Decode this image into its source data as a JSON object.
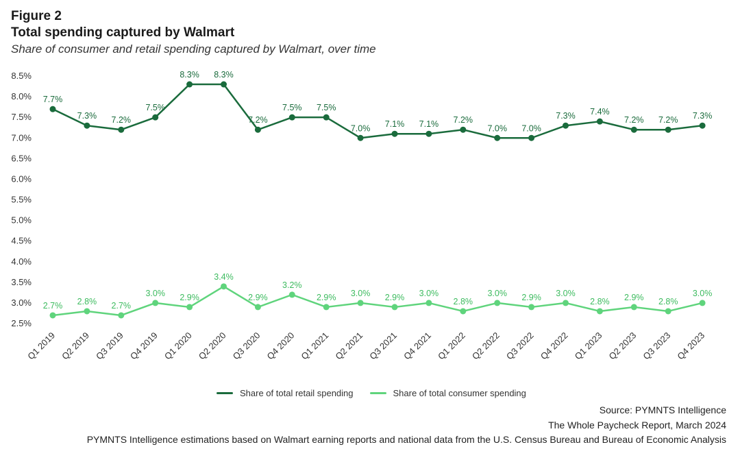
{
  "header": {
    "figure_label": "Figure 2",
    "title": "Total spending captured by Walmart",
    "subtitle": "Share of consumer and retail spending captured by Walmart, over time"
  },
  "legend": {
    "items": [
      {
        "label": "Share of total retail spending",
        "color": "#1a6b3c"
      },
      {
        "label": "Share of total consumer spending",
        "color": "#5fd47c"
      }
    ]
  },
  "footer": {
    "source": "Source: PYMNTS Intelligence",
    "report": "The Whole Paycheck Report, March 2024",
    "note": "PYMNTS Intelligence estimations based on Walmart earning reports and national data from the U.S. Census Bureau and Bureau of Economic Analysis"
  },
  "chart_data": {
    "type": "line",
    "categories": [
      "Q1 2019",
      "Q2 2019",
      "Q3 2019",
      "Q4 2019",
      "Q1 2020",
      "Q2 2020",
      "Q3 2020",
      "Q4 2020",
      "Q1 2021",
      "Q2 2021",
      "Q3 2021",
      "Q4 2021",
      "Q1 2022",
      "Q2 2022",
      "Q3 2022",
      "Q4 2022",
      "Q1 2023",
      "Q2 2023",
      "Q3 2023",
      "Q4 2023"
    ],
    "y_ticks": [
      "2.5%",
      "3.0%",
      "3.5%",
      "4.0%",
      "4.5%",
      "5.0%",
      "5.5%",
      "6.0%",
      "6.5%",
      "7.0%",
      "7.5%",
      "8.0%",
      "8.5%"
    ],
    "ylim": [
      2.5,
      8.5
    ],
    "grid": false,
    "legend_position": "bottom",
    "series": [
      {
        "name": "Share of total retail spending",
        "color": "#1a6b3c",
        "values": [
          7.7,
          7.3,
          7.2,
          7.5,
          8.3,
          8.3,
          7.2,
          7.5,
          7.5,
          7.0,
          7.1,
          7.1,
          7.2,
          7.0,
          7.0,
          7.3,
          7.4,
          7.2,
          7.2,
          7.3
        ],
        "labels": [
          "7.7%",
          "7.3%",
          "7.2%",
          "7.5%",
          "8.3%",
          "8.3%",
          "7.2%",
          "7.5%",
          "7.5%",
          "7.0%",
          "7.1%",
          "7.1%",
          "7.2%",
          "7.0%",
          "7.0%",
          "7.3%",
          "7.4%",
          "7.2%",
          "7.2%",
          "7.3%"
        ]
      },
      {
        "name": "Share of total consumer spending",
        "color": "#5fd47c",
        "label_color": "#3dbb5f",
        "values": [
          2.7,
          2.8,
          2.7,
          3.0,
          2.9,
          3.4,
          2.9,
          3.2,
          2.9,
          3.0,
          2.9,
          3.0,
          2.8,
          3.0,
          2.9,
          3.0,
          2.8,
          2.9,
          2.8,
          3.0
        ],
        "labels": [
          "2.7%",
          "2.8%",
          "2.7%",
          "3.0%",
          "2.9%",
          "3.4%",
          "2.9%",
          "3.2%",
          "2.9%",
          "3.0%",
          "2.9%",
          "3.0%",
          "2.8%",
          "3.0%",
          "2.9%",
          "3.0%",
          "2.8%",
          "2.9%",
          "2.8%",
          "3.0%"
        ]
      }
    ]
  }
}
